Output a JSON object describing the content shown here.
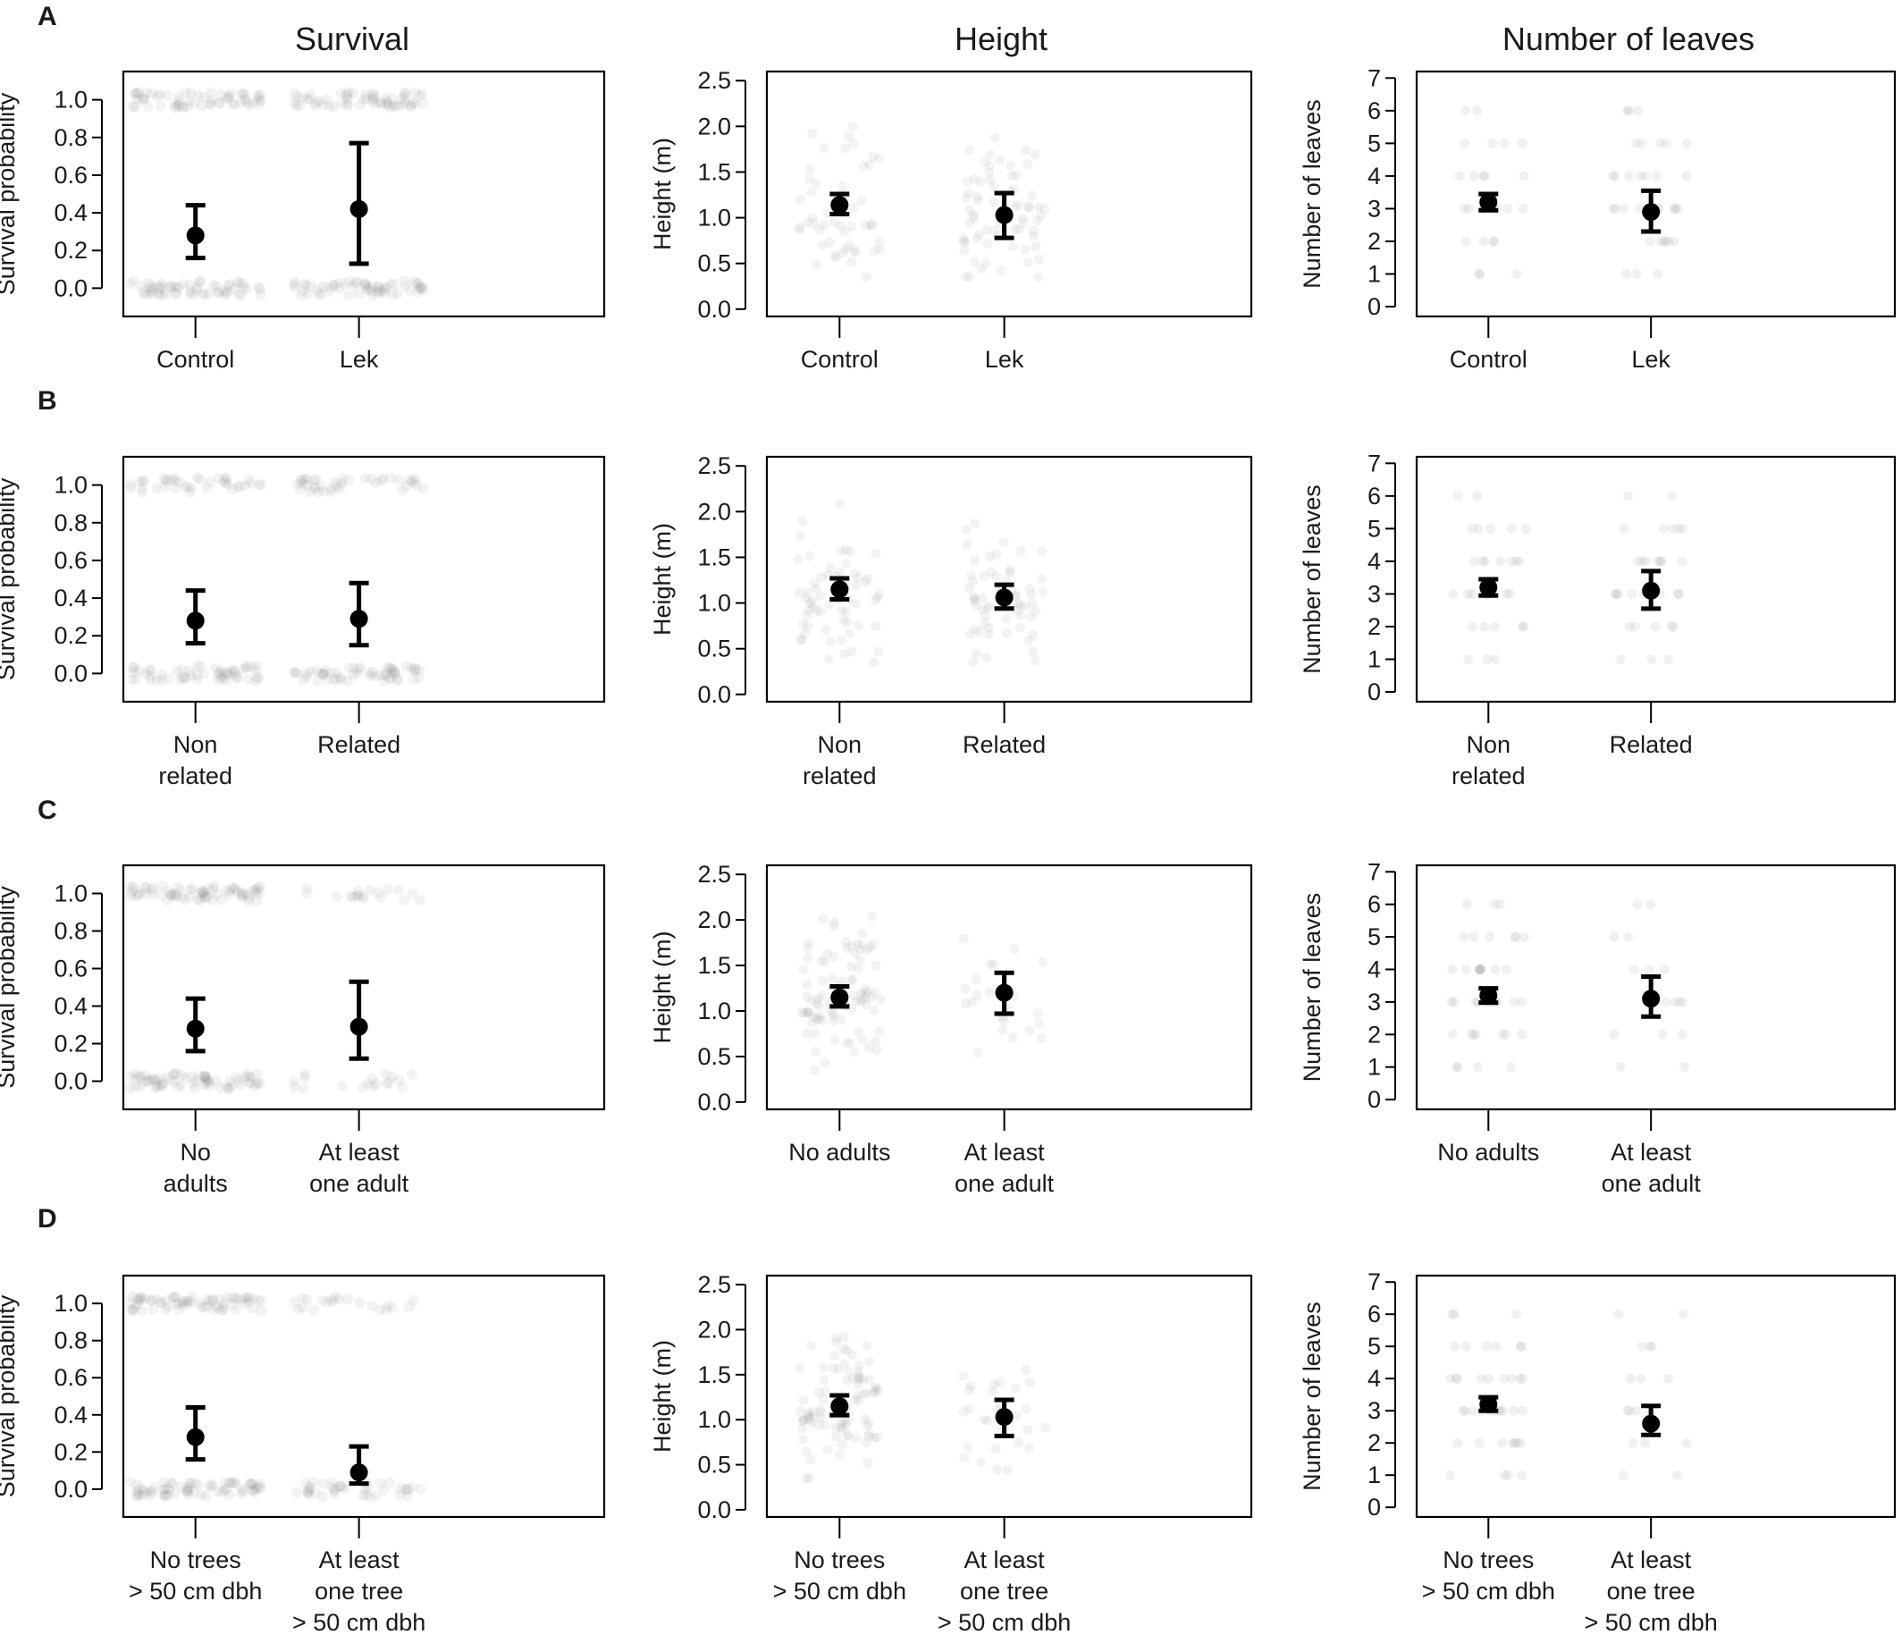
{
  "figure": {
    "column_titles": [
      "Survival",
      "Height",
      "Number of leaves"
    ],
    "row_labels": [
      "A",
      "B",
      "C",
      "D"
    ]
  },
  "chart_data": [
    {
      "type": "scatter",
      "row": 0,
      "col": 0,
      "ylabel": "Survival probability",
      "ylim": [
        -0.15,
        1.15
      ],
      "yticks": [
        0,
        0.2,
        0.4,
        0.6,
        0.8,
        1
      ],
      "tick_decimals": 1,
      "categories": [
        [
          "Control"
        ],
        [
          "Lek"
        ]
      ],
      "means": [
        0.28,
        0.42
      ],
      "ci": [
        [
          0.16,
          0.44
        ],
        [
          0.13,
          0.77
        ]
      ],
      "raw_alpha": [
        [
          0.85,
          0.85
        ],
        [
          0.85,
          0.85
        ]
      ],
      "points": "binary"
    },
    {
      "type": "scatter",
      "row": 0,
      "col": 1,
      "ylabel": "Height (m)",
      "ylim": [
        -0.08,
        2.6
      ],
      "yticks": [
        0,
        0.5,
        1,
        1.5,
        2,
        2.5
      ],
      "tick_decimals": 1,
      "categories": [
        [
          "Control"
        ],
        [
          "Lek"
        ]
      ],
      "means": [
        1.14,
        1.03
      ],
      "ci": [
        [
          1.04,
          1.26
        ],
        [
          0.78,
          1.27
        ]
      ],
      "raw_alpha": [
        0.55,
        0.75
      ],
      "points": "continuous"
    },
    {
      "type": "scatter",
      "row": 0,
      "col": 2,
      "ylabel": "Number of leaves",
      "ylim": [
        -0.3,
        7.2
      ],
      "yticks": [
        0,
        1,
        2,
        3,
        4,
        5,
        6,
        7
      ],
      "tick_decimals": 0,
      "categories": [
        [
          "Control"
        ],
        [
          "Lek"
        ]
      ],
      "means": [
        3.2,
        2.9
      ],
      "ci": [
        [
          2.95,
          3.45
        ],
        [
          2.3,
          3.55
        ]
      ],
      "raw_alpha": [
        0.55,
        0.75
      ],
      "points": "count"
    },
    {
      "type": "scatter",
      "row": 1,
      "col": 0,
      "ylabel": "Survival probability",
      "ylim": [
        -0.15,
        1.15
      ],
      "yticks": [
        0,
        0.2,
        0.4,
        0.6,
        0.8,
        1
      ],
      "tick_decimals": 1,
      "categories": [
        [
          "Non",
          "related"
        ],
        [
          "Related"
        ]
      ],
      "means": [
        0.28,
        0.29
      ],
      "ci": [
        [
          0.16,
          0.44
        ],
        [
          0.15,
          0.48
        ]
      ],
      "raw_alpha": [
        [
          0.8,
          0.55
        ],
        [
          0.8,
          0.55
        ]
      ],
      "points": "binary"
    },
    {
      "type": "scatter",
      "row": 1,
      "col": 1,
      "ylabel": "Height (m)",
      "ylim": [
        -0.08,
        2.6
      ],
      "yticks": [
        0,
        0.5,
        1,
        1.5,
        2,
        2.5
      ],
      "tick_decimals": 1,
      "categories": [
        [
          "Non",
          "related"
        ],
        [
          "Related"
        ]
      ],
      "means": [
        1.15,
        1.06
      ],
      "ci": [
        [
          1.04,
          1.27
        ],
        [
          0.94,
          1.2
        ]
      ],
      "raw_alpha": [
        0.7,
        0.7
      ],
      "points": "continuous"
    },
    {
      "type": "scatter",
      "row": 1,
      "col": 2,
      "ylabel": "Number of leaves",
      "ylim": [
        -0.3,
        7.2
      ],
      "yticks": [
        0,
        1,
        2,
        3,
        4,
        5,
        6,
        7
      ],
      "tick_decimals": 0,
      "categories": [
        [
          "Non",
          "related"
        ],
        [
          "Related"
        ]
      ],
      "means": [
        3.2,
        3.1
      ],
      "ci": [
        [
          2.95,
          3.45
        ],
        [
          2.55,
          3.7
        ]
      ],
      "raw_alpha": [
        0.7,
        0.7
      ],
      "points": "count"
    },
    {
      "type": "scatter",
      "row": 2,
      "col": 0,
      "ylabel": "Survival probability",
      "ylim": [
        -0.15,
        1.15
      ],
      "yticks": [
        0,
        0.2,
        0.4,
        0.6,
        0.8,
        1
      ],
      "tick_decimals": 1,
      "categories": [
        [
          "No",
          "adults"
        ],
        [
          "At least",
          "one adult"
        ]
      ],
      "means": [
        0.28,
        0.29
      ],
      "ci": [
        [
          0.16,
          0.44
        ],
        [
          0.12,
          0.53
        ]
      ],
      "raw_alpha": [
        [
          1.0,
          1.0
        ],
        [
          0.25,
          0.25
        ]
      ],
      "points": "binary"
    },
    {
      "type": "scatter",
      "row": 2,
      "col": 1,
      "ylabel": "Height (m)",
      "ylim": [
        -0.08,
        2.6
      ],
      "yticks": [
        0,
        0.5,
        1,
        1.5,
        2,
        2.5
      ],
      "tick_decimals": 1,
      "categories": [
        [
          "No adults"
        ],
        [
          "At least",
          "one adult"
        ]
      ],
      "means": [
        1.15,
        1.2
      ],
      "ci": [
        [
          1.05,
          1.27
        ],
        [
          0.97,
          1.42
        ]
      ],
      "raw_alpha": [
        1.0,
        0.25
      ],
      "points": "continuous"
    },
    {
      "type": "scatter",
      "row": 2,
      "col": 2,
      "ylabel": "Number of leaves",
      "ylim": [
        -0.3,
        7.2
      ],
      "yticks": [
        0,
        1,
        2,
        3,
        4,
        5,
        6,
        7
      ],
      "tick_decimals": 0,
      "categories": [
        [
          "No adults"
        ],
        [
          "At least",
          "one adult"
        ]
      ],
      "means": [
        3.2,
        3.1
      ],
      "ci": [
        [
          2.98,
          3.42
        ],
        [
          2.55,
          3.78
        ]
      ],
      "raw_alpha": [
        1.0,
        0.25
      ],
      "points": "count"
    },
    {
      "type": "scatter",
      "row": 3,
      "col": 0,
      "ylabel": "Survival probability",
      "ylim": [
        -0.15,
        1.15
      ],
      "yticks": [
        0,
        0.2,
        0.4,
        0.6,
        0.8,
        1
      ],
      "tick_decimals": 1,
      "categories": [
        [
          "No trees",
          "> 50 cm dbh"
        ],
        [
          "At least",
          "one tree",
          "> 50 cm dbh"
        ]
      ],
      "means": [
        0.28,
        0.09
      ],
      "ci": [
        [
          0.16,
          0.44
        ],
        [
          0.03,
          0.23
        ]
      ],
      "raw_alpha": [
        [
          1.0,
          1.0
        ],
        [
          0.55,
          0.3
        ]
      ],
      "points": "binary"
    },
    {
      "type": "scatter",
      "row": 3,
      "col": 1,
      "ylabel": "Height (m)",
      "ylim": [
        -0.08,
        2.6
      ],
      "yticks": [
        0,
        0.5,
        1,
        1.5,
        2,
        2.5
      ],
      "tick_decimals": 1,
      "categories": [
        [
          "No trees",
          "> 50 cm dbh"
        ],
        [
          "At least",
          "one tree",
          "> 50 cm dbh"
        ]
      ],
      "means": [
        1.15,
        1.03
      ],
      "ci": [
        [
          1.05,
          1.27
        ],
        [
          0.82,
          1.22
        ]
      ],
      "raw_alpha": [
        1.0,
        0.3
      ],
      "points": "continuous"
    },
    {
      "type": "scatter",
      "row": 3,
      "col": 2,
      "ylabel": "Number of leaves",
      "ylim": [
        -0.3,
        7.2
      ],
      "yticks": [
        0,
        1,
        2,
        3,
        4,
        5,
        6,
        7
      ],
      "tick_decimals": 0,
      "categories": [
        [
          "No trees",
          "> 50 cm dbh"
        ],
        [
          "At least",
          "one tree",
          "> 50 cm dbh"
        ]
      ],
      "means": [
        3.2,
        2.6
      ],
      "ci": [
        [
          3.0,
          3.42
        ],
        [
          2.25,
          3.15
        ]
      ],
      "raw_alpha": [
        1.0,
        0.3
      ],
      "points": "count"
    }
  ]
}
